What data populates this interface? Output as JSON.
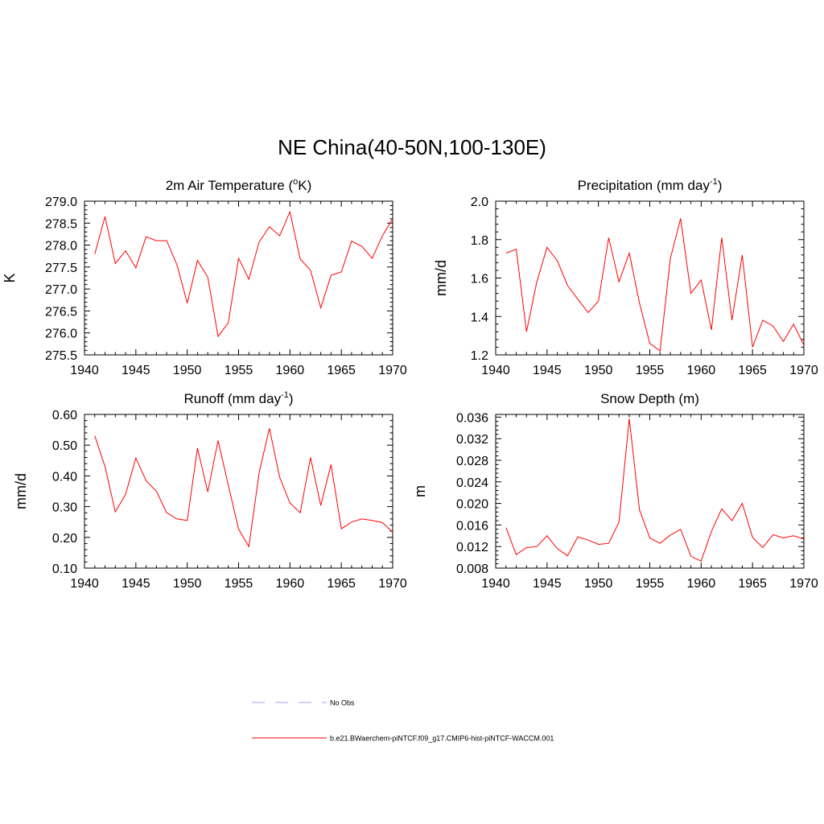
{
  "main_title": "NE China(40-50N,100-130E)",
  "legend": [
    {
      "label": "No Obs",
      "color": "#a3a3e6",
      "dash": true
    },
    {
      "label": "b.e21.BWaerchem-piNTCF.f09_g17.CMIP6-hist-piNTCF-WACCM.001",
      "color": "#ff0000",
      "dash": false
    }
  ],
  "colors": {
    "series": "#ff0000",
    "no_obs": "#a3a3e6",
    "axis": "#000000"
  },
  "chart_data": [
    {
      "type": "line",
      "title": "2m Air Temperature (",
      "title_sup": "o",
      "title_after": "K)",
      "ylabel": "K",
      "xlim": [
        1940,
        1970
      ],
      "ylim": [
        275.5,
        279.0
      ],
      "xticks": [
        "1940",
        "1945",
        "1950",
        "1955",
        "1960",
        "1965",
        "1970"
      ],
      "yticks": [
        "275.5",
        "276.0",
        "276.5",
        "277.0",
        "277.5",
        "278.0",
        "278.5",
        "279.0"
      ],
      "x": [
        1941,
        1942,
        1943,
        1944,
        1945,
        1946,
        1947,
        1948,
        1949,
        1950,
        1951,
        1952,
        1953,
        1954,
        1955,
        1956,
        1957,
        1958,
        1959,
        1960,
        1961,
        1962,
        1963,
        1964,
        1965,
        1966,
        1967,
        1968,
        1969,
        1970
      ],
      "series": [
        {
          "name": "b.e21.BWaerchem-piNTCF.f09_g17.CMIP6-hist-piNTCF-WACCM.001",
          "values": [
            277.8,
            278.65,
            277.58,
            277.87,
            277.48,
            278.19,
            278.1,
            278.1,
            277.55,
            276.68,
            277.65,
            277.27,
            275.92,
            276.23,
            277.7,
            277.22,
            278.07,
            278.42,
            278.21,
            278.76,
            277.68,
            277.43,
            276.57,
            277.31,
            277.39,
            278.09,
            277.97,
            277.7,
            278.21,
            278.6
          ]
        }
      ]
    },
    {
      "type": "line",
      "title": "Precipitation (mm day",
      "title_sup": "-1",
      "title_after": ")",
      "ylabel": "mm/d",
      "xlim": [
        1940,
        1970
      ],
      "ylim": [
        1.2,
        2.0
      ],
      "xticks": [
        "1940",
        "1945",
        "1950",
        "1955",
        "1960",
        "1965",
        "1970"
      ],
      "yticks": [
        "1.2",
        "1.4",
        "1.6",
        "1.8",
        "2.0"
      ],
      "x": [
        1941,
        1942,
        1943,
        1944,
        1945,
        1946,
        1947,
        1948,
        1949,
        1950,
        1951,
        1952,
        1953,
        1954,
        1955,
        1956,
        1957,
        1958,
        1959,
        1960,
        1961,
        1962,
        1963,
        1964,
        1965,
        1966,
        1967,
        1968,
        1969,
        1970
      ],
      "series": [
        {
          "name": "b.e21.BWaerchem-piNTCF.f09_g17.CMIP6-hist-piNTCF-WACCM.001",
          "values": [
            1.73,
            1.75,
            1.32,
            1.58,
            1.76,
            1.69,
            1.56,
            1.49,
            1.42,
            1.48,
            1.81,
            1.58,
            1.73,
            1.47,
            1.26,
            1.22,
            1.7,
            1.91,
            1.52,
            1.59,
            1.33,
            1.81,
            1.38,
            1.72,
            1.24,
            1.38,
            1.35,
            1.27,
            1.36,
            1.25
          ]
        }
      ]
    },
    {
      "type": "line",
      "title": "Runoff (mm day",
      "title_sup": "-1",
      "title_after": ")",
      "ylabel": "mm/d",
      "xlim": [
        1940,
        1970
      ],
      "ylim": [
        0.1,
        0.6
      ],
      "xticks": [
        "1940",
        "1945",
        "1950",
        "1955",
        "1960",
        "1965",
        "1970"
      ],
      "yticks": [
        "0.10",
        "0.20",
        "0.30",
        "0.40",
        "0.50",
        "0.60"
      ],
      "x": [
        1941,
        1942,
        1943,
        1944,
        1945,
        1946,
        1947,
        1948,
        1949,
        1950,
        1951,
        1952,
        1953,
        1954,
        1955,
        1956,
        1957,
        1958,
        1959,
        1960,
        1961,
        1962,
        1963,
        1964,
        1965,
        1966,
        1967,
        1968,
        1969,
        1970
      ],
      "series": [
        {
          "name": "b.e21.BWaerchem-piNTCF.f09_g17.CMIP6-hist-piNTCF-WACCM.001",
          "values": [
            0.53,
            0.43,
            0.283,
            0.34,
            0.458,
            0.384,
            0.35,
            0.28,
            0.26,
            0.255,
            0.49,
            0.348,
            0.515,
            0.37,
            0.227,
            0.17,
            0.41,
            0.555,
            0.395,
            0.312,
            0.28,
            0.46,
            0.304,
            0.437,
            0.228,
            0.25,
            0.26,
            0.255,
            0.248,
            0.217
          ]
        }
      ]
    },
    {
      "type": "line",
      "title": "Snow Depth (m)",
      "title_sup": "",
      "title_after": "",
      "ylabel": "m",
      "xlim": [
        1940,
        1970
      ],
      "ylim": [
        0.008,
        0.0365
      ],
      "xticks": [
        "1940",
        "1945",
        "1950",
        "1955",
        "1960",
        "1965",
        "1970"
      ],
      "yticks": [
        "0.008",
        "0.012",
        "0.016",
        "0.020",
        "0.024",
        "0.028",
        "0.032",
        "0.036"
      ],
      "x": [
        1941,
        1942,
        1943,
        1944,
        1945,
        1946,
        1947,
        1948,
        1949,
        1950,
        1951,
        1952,
        1953,
        1954,
        1955,
        1956,
        1957,
        1958,
        1959,
        1960,
        1961,
        1962,
        1963,
        1964,
        1965,
        1966,
        1967,
        1968,
        1969,
        1970
      ],
      "series": [
        {
          "name": "b.e21.BWaerchem-piNTCF.f09_g17.CMIP6-hist-piNTCF-WACCM.001",
          "values": [
            0.0155,
            0.0105,
            0.0118,
            0.012,
            0.014,
            0.0116,
            0.0103,
            0.0138,
            0.0132,
            0.0124,
            0.0126,
            0.0165,
            0.0357,
            0.0188,
            0.0136,
            0.0126,
            0.0141,
            0.0152,
            0.0102,
            0.0093,
            0.0148,
            0.019,
            0.0168,
            0.02,
            0.0137,
            0.0118,
            0.0142,
            0.0136,
            0.014,
            0.0134
          ]
        }
      ]
    }
  ]
}
